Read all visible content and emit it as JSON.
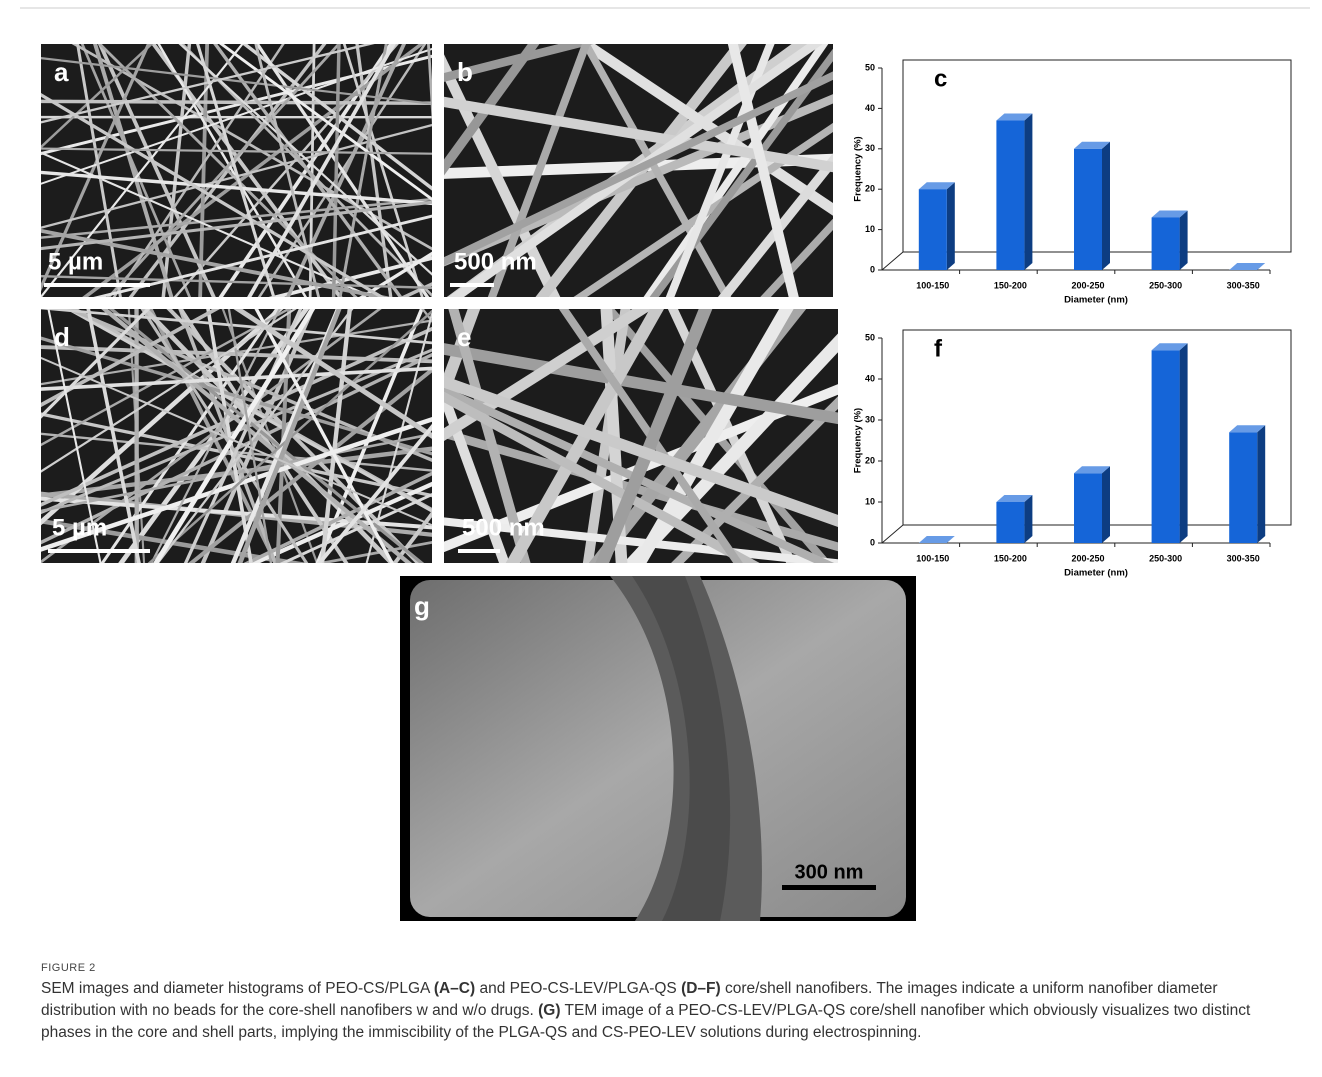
{
  "panels": [
    {
      "label": "a",
      "scale_bar": "5 µm"
    },
    {
      "label": "b",
      "scale_bar": "500 nm"
    },
    {
      "label": "d",
      "scale_bar": "5 µm"
    },
    {
      "label": "e",
      "scale_bar": "500 nm"
    },
    {
      "label": "g",
      "scale_bar": "300 nm"
    }
  ],
  "chart_data": [
    {
      "type": "bar",
      "panel_label": "c",
      "x_label": "Diameter (nm)",
      "y_label": "Frequency (%)",
      "categories": [
        "100-150",
        "150-200",
        "200-250",
        "250-300",
        "300-350"
      ],
      "values": [
        20,
        37,
        30,
        13,
        0
      ],
      "color": "#1565d8",
      "ylim": [
        0,
        50
      ],
      "yticks": [
        0,
        10,
        20,
        30,
        40,
        50
      ]
    },
    {
      "type": "bar",
      "panel_label": "f",
      "x_label": "Diameter (nm)",
      "y_label": "Frequency (%)",
      "categories": [
        "100-150",
        "150-200",
        "200-250",
        "250-300",
        "300-350"
      ],
      "values": [
        0,
        10,
        17,
        47,
        27
      ],
      "color": "#1565d8",
      "ylim": [
        0,
        50
      ],
      "yticks": [
        0,
        10,
        20,
        30,
        40,
        50
      ]
    }
  ],
  "caption": {
    "figure_label": "FIGURE 2",
    "parts": [
      {
        "text": "SEM images and diameter histograms of PEO-CS/PLGA ",
        "bold": false
      },
      {
        "text": "(A–C)",
        "bold": true
      },
      {
        "text": " and PEO-CS-LEV/PLGA-QS ",
        "bold": false
      },
      {
        "text": "(D–F)",
        "bold": true
      },
      {
        "text": " core/shell nanofibers. The images indicate a uniform nanofiber diameter distribution with no beads for the core-shell nanofibers w and w/o drugs. ",
        "bold": false
      },
      {
        "text": "(G)",
        "bold": true
      },
      {
        "text": " TEM image of a PEO-CS-LEV/PLGA-QS core/shell nanofiber which obviously visualizes two distinct phases in the core and shell parts, implying the immiscibility of the PLGA-QS and CS-PEO-LEV solutions during electrospinning.",
        "bold": false
      }
    ]
  }
}
